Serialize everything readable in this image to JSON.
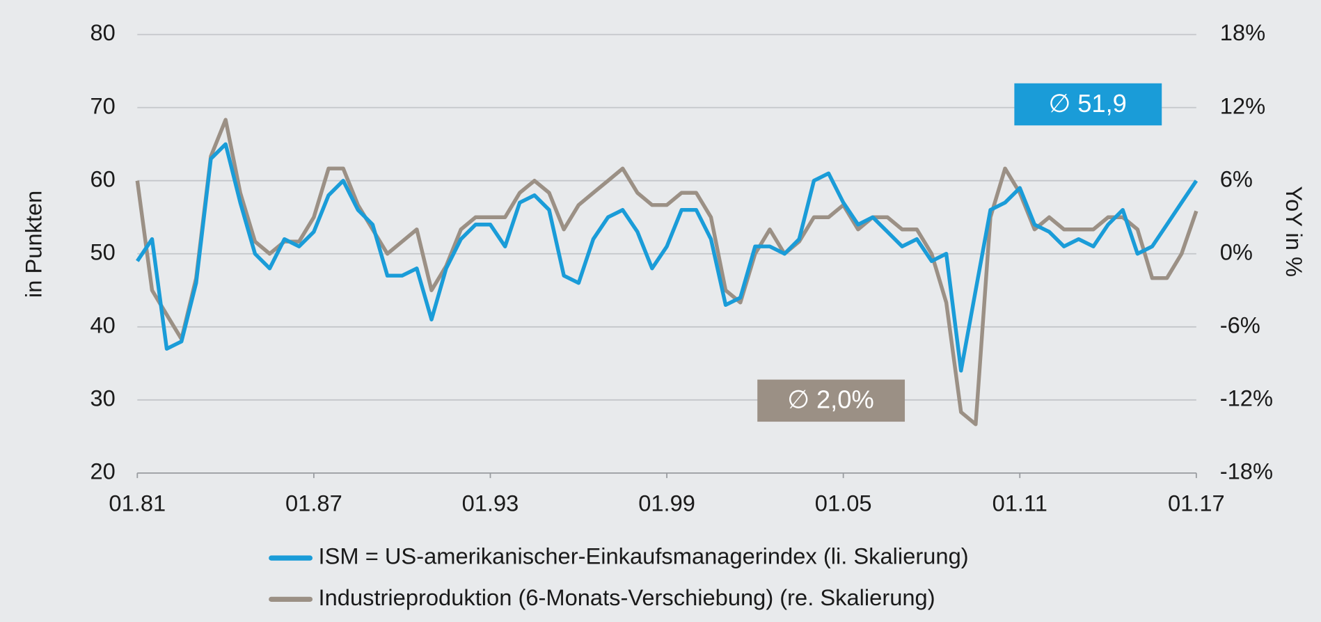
{
  "chart_data": {
    "type": "line",
    "y_label": "in Punkten",
    "y2_label": "YoY in %",
    "x": [
      1981.0,
      1981.5,
      1982.0,
      1982.5,
      1983.0,
      1983.5,
      1984.0,
      1984.5,
      1985.0,
      1985.5,
      1986.0,
      1986.5,
      1987.0,
      1987.5,
      1988.0,
      1988.5,
      1989.0,
      1989.5,
      1990.0,
      1990.5,
      1991.0,
      1991.5,
      1992.0,
      1992.5,
      1993.0,
      1993.5,
      1994.0,
      1994.5,
      1995.0,
      1995.5,
      1996.0,
      1996.5,
      1997.0,
      1997.5,
      1998.0,
      1998.5,
      1999.0,
      1999.5,
      2000.0,
      2000.5,
      2001.0,
      2001.5,
      2002.0,
      2002.5,
      2003.0,
      2003.5,
      2004.0,
      2004.5,
      2005.0,
      2005.5,
      2006.0,
      2006.5,
      2007.0,
      2007.5,
      2008.0,
      2008.5,
      2009.0,
      2009.5,
      2010.0,
      2010.5,
      2011.0,
      2011.5,
      2012.0,
      2012.5,
      2013.0,
      2013.5,
      2014.0,
      2014.5,
      2015.0,
      2015.5,
      2016.0,
      2016.5,
      2017.0
    ],
    "xlim": [
      1981,
      2017
    ],
    "xticks": [
      {
        "value": 1981,
        "label": "01.81"
      },
      {
        "value": 1987,
        "label": "01.87"
      },
      {
        "value": 1993,
        "label": "01.93"
      },
      {
        "value": 1999,
        "label": "01.99"
      },
      {
        "value": 2005,
        "label": "01.05"
      },
      {
        "value": 2011,
        "label": "01.11"
      },
      {
        "value": 2017,
        "label": "01.17"
      }
    ],
    "ylim": [
      20,
      80
    ],
    "yticks": [
      20,
      30,
      40,
      50,
      60,
      70,
      80
    ],
    "y2lim": [
      -18,
      18
    ],
    "y2ticks": [
      {
        "value": -18,
        "label": "-18%"
      },
      {
        "value": -12,
        "label": "-12%"
      },
      {
        "value": -6,
        "label": "-6%"
      },
      {
        "value": 0,
        "label": "0%"
      },
      {
        "value": 6,
        "label": "6%"
      },
      {
        "value": 12,
        "label": "12%"
      },
      {
        "value": 18,
        "label": "18%"
      }
    ],
    "grid": true,
    "series": [
      {
        "name": "ISM = US-amerikanischer-Einkaufsmanagerindex (li. Skalierung)",
        "color": "#1a9cd8",
        "values": [
          49,
          52,
          37,
          38,
          46,
          63,
          65,
          57,
          50,
          48,
          52,
          51,
          53,
          58,
          60,
          56,
          54,
          47,
          47,
          48,
          41,
          48,
          52,
          54,
          54,
          51,
          57,
          58,
          56,
          47,
          46,
          52,
          55,
          56,
          53,
          48,
          51,
          56,
          56,
          52,
          43,
          44,
          51,
          51,
          50,
          52,
          60,
          61,
          57,
          54,
          55,
          53,
          51,
          52,
          49,
          50,
          34,
          45,
          56,
          57,
          59,
          54,
          53,
          51,
          52,
          51,
          54,
          56,
          50,
          51,
          54,
          57,
          60
        ]
      },
      {
        "name": "Industrieproduktion (6-Monats-Verschiebung) (re. Skalierung)",
        "color": "#9b9085",
        "axis": "y2",
        "values": [
          6,
          -3,
          -5,
          -7,
          -2,
          8,
          11,
          5,
          1,
          0,
          1,
          1,
          3,
          7,
          7,
          4,
          2,
          0,
          1,
          2,
          -3,
          -1,
          2,
          3,
          3,
          3,
          5,
          6,
          5,
          2,
          4,
          5,
          6,
          7,
          5,
          4,
          4,
          5,
          5,
          3,
          -3,
          -4,
          0,
          2,
          0,
          1,
          3,
          3,
          4,
          2,
          3,
          3,
          2,
          2,
          0,
          -4,
          -13,
          -14,
          3,
          7,
          5,
          2,
          3,
          2,
          2,
          2,
          3,
          3,
          2,
          -2,
          -2,
          0,
          3.5
        ]
      }
    ],
    "annotations": [
      {
        "text": "∅ 51,9",
        "color": "#1a9cd8"
      },
      {
        "text": "∅ 2,0%",
        "color": "#9b9085"
      }
    ]
  }
}
